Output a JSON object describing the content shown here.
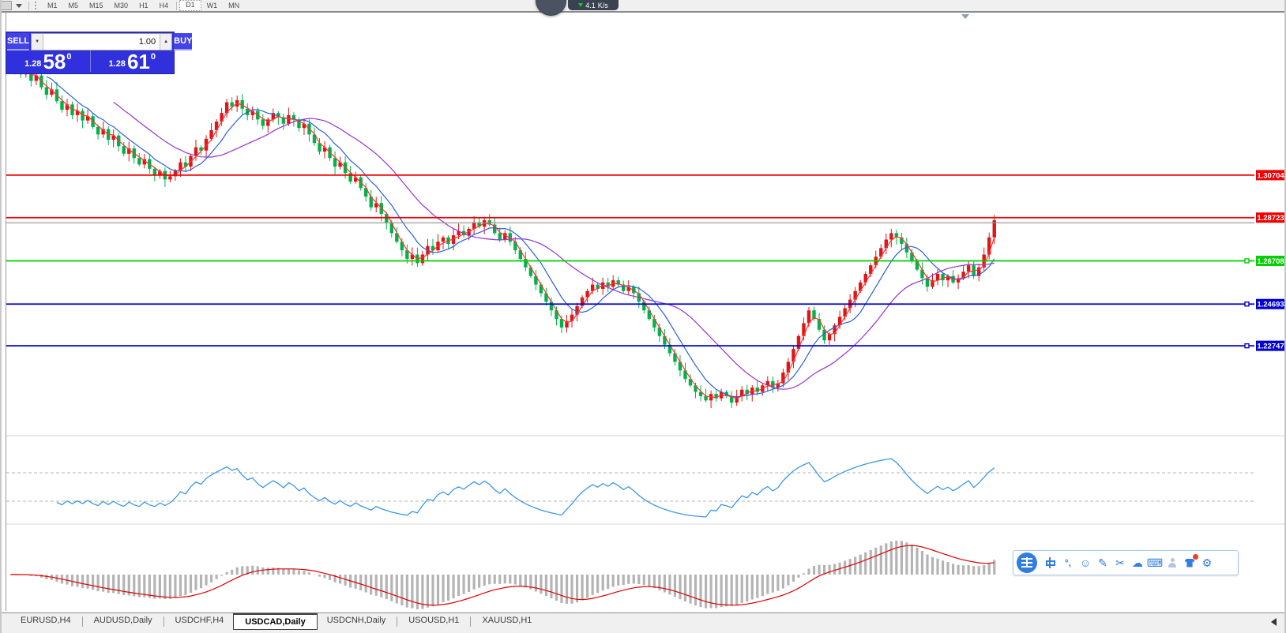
{
  "toolbar": {
    "timeframes": [
      "M1",
      "M5",
      "M15",
      "M30",
      "H1",
      "H4",
      "D1",
      "W1",
      "MN"
    ],
    "active_timeframe": "D1"
  },
  "float_widget": {
    "speed_value": "4.1",
    "speed_unit": "K/s"
  },
  "order_panel": {
    "sell_label": "SELL",
    "buy_label": "BUY",
    "volume": "1.00",
    "sell_price": {
      "prefix": "1.28",
      "big": "58",
      "sup": "0"
    },
    "buy_price": {
      "prefix": "1.28",
      "big": "61",
      "sup": "0"
    }
  },
  "chart_data": {
    "type": "candlestick",
    "up_color": "#e01515",
    "down_color": "#00b24a",
    "price_top": 1.3828,
    "price_bottom": 1.1863,
    "price_lines": [
      {
        "label": "1.30704",
        "price": 1.30704,
        "color": "#f00000",
        "handle": false
      },
      {
        "label": "1.28723",
        "price": 1.28723,
        "color": "#f00000",
        "handle": false
      },
      {
        "label": "1.26708",
        "price": 1.26708,
        "color": "#00d000",
        "handle": true
      },
      {
        "label": "1.24693",
        "price": 1.24693,
        "color": "#0000d0",
        "handle": true
      },
      {
        "label": "1.22747",
        "price": 1.22747,
        "color": "#0000d0",
        "handle": true
      }
    ],
    "current_price_line": {
      "price": 1.2848,
      "color": "#8c8c8c"
    },
    "closes": [
      1.357,
      1.3595,
      1.354,
      1.3565,
      1.351,
      1.3535,
      1.348,
      1.3445,
      1.347,
      1.3415,
      1.3375,
      1.34,
      1.335,
      1.337,
      1.3325,
      1.3345,
      1.3295,
      1.326,
      1.3285,
      1.3235,
      1.3255,
      1.3205,
      1.317,
      1.3195,
      1.315,
      1.312,
      1.3145,
      1.31,
      1.307,
      1.309,
      1.305,
      1.3065,
      1.309,
      1.313,
      1.311,
      1.316,
      1.32,
      1.3185,
      1.324,
      1.328,
      1.332,
      1.336,
      1.341,
      1.339,
      1.342,
      1.338,
      1.335,
      1.337,
      1.333,
      1.33,
      1.333,
      1.336,
      1.334,
      1.331,
      1.335,
      1.333,
      1.329,
      1.331,
      1.326,
      1.322,
      1.318,
      1.32,
      1.315,
      1.311,
      1.313,
      1.308,
      1.304,
      1.306,
      1.301,
      1.297,
      1.292,
      1.294,
      1.289,
      1.285,
      1.28,
      1.276,
      1.272,
      1.268,
      1.27,
      1.266,
      1.27,
      1.274,
      1.272,
      1.276,
      1.278,
      1.275,
      1.279,
      1.281,
      1.279,
      1.282,
      1.285,
      1.283,
      1.286,
      1.284,
      1.28,
      1.277,
      1.28,
      1.276,
      1.272,
      1.268,
      1.264,
      1.26,
      1.256,
      1.252,
      1.248,
      1.244,
      1.24,
      1.236,
      1.239,
      1.242,
      1.246,
      1.25,
      1.253,
      1.256,
      1.254,
      1.257,
      1.255,
      1.258,
      1.256,
      1.253,
      1.255,
      1.252,
      1.248,
      1.244,
      1.24,
      1.236,
      1.232,
      1.228,
      1.224,
      1.22,
      1.216,
      1.212,
      1.209,
      1.206,
      1.204,
      1.202,
      1.205,
      1.203,
      1.206,
      1.204,
      1.201,
      1.204,
      1.207,
      1.205,
      1.208,
      1.206,
      1.209,
      1.211,
      1.208,
      1.21,
      1.215,
      1.22,
      1.226,
      1.232,
      1.238,
      1.244,
      1.24,
      1.235,
      1.23,
      1.233,
      1.237,
      1.241,
      1.245,
      1.249,
      1.253,
      1.257,
      1.261,
      1.265,
      1.269,
      1.273,
      1.277,
      1.28,
      1.278,
      1.275,
      1.271,
      1.267,
      1.263,
      1.259,
      1.255,
      1.258,
      1.261,
      1.258,
      1.26,
      1.257,
      1.259,
      1.262,
      1.265,
      1.26,
      1.264,
      1.27,
      1.278,
      1.286
    ],
    "moving_averages": [
      {
        "period": 3,
        "color": "#ff3333"
      },
      {
        "period": 8,
        "color": "#2b5fd9"
      },
      {
        "period": 21,
        "color": "#9933cc"
      }
    ],
    "indicator1": {
      "type": "rsi",
      "period": 9,
      "color": "#3b97e8",
      "levels": [
        70,
        30
      ],
      "level_color": "#b4b4b4"
    },
    "indicator2": {
      "type": "macd",
      "fast": 12,
      "slow": 26,
      "signal": 9,
      "bar_color": "#b4b4b4",
      "signal_color": "#e00000"
    }
  },
  "tabs": {
    "items": [
      "EURUSD,H4",
      "AUDUSD,Daily",
      "USDCHF,H4",
      "USDCAD,Daily",
      "USDCNH,Daily",
      "USOUSD,H1",
      "XAUUSD,H1"
    ],
    "active": "USDCAD,Daily"
  },
  "ime_toolbar": {
    "logo": "sogou-wang-logo",
    "icons": [
      {
        "name": "chinese-mode",
        "type": "zhong"
      },
      {
        "name": "punctuation",
        "glyph": "°,"
      },
      {
        "name": "emoji",
        "glyph": "☺"
      },
      {
        "name": "handwriting",
        "glyph": "✎"
      },
      {
        "name": "screenshot",
        "glyph": "✂"
      },
      {
        "name": "cloud",
        "glyph": "☁"
      },
      {
        "name": "keyboard",
        "glyph": "⌨"
      },
      {
        "name": "profile",
        "type": "person"
      },
      {
        "name": "skin",
        "type": "tshirt",
        "badge": true
      },
      {
        "name": "settings",
        "glyph": "⚙"
      }
    ]
  }
}
